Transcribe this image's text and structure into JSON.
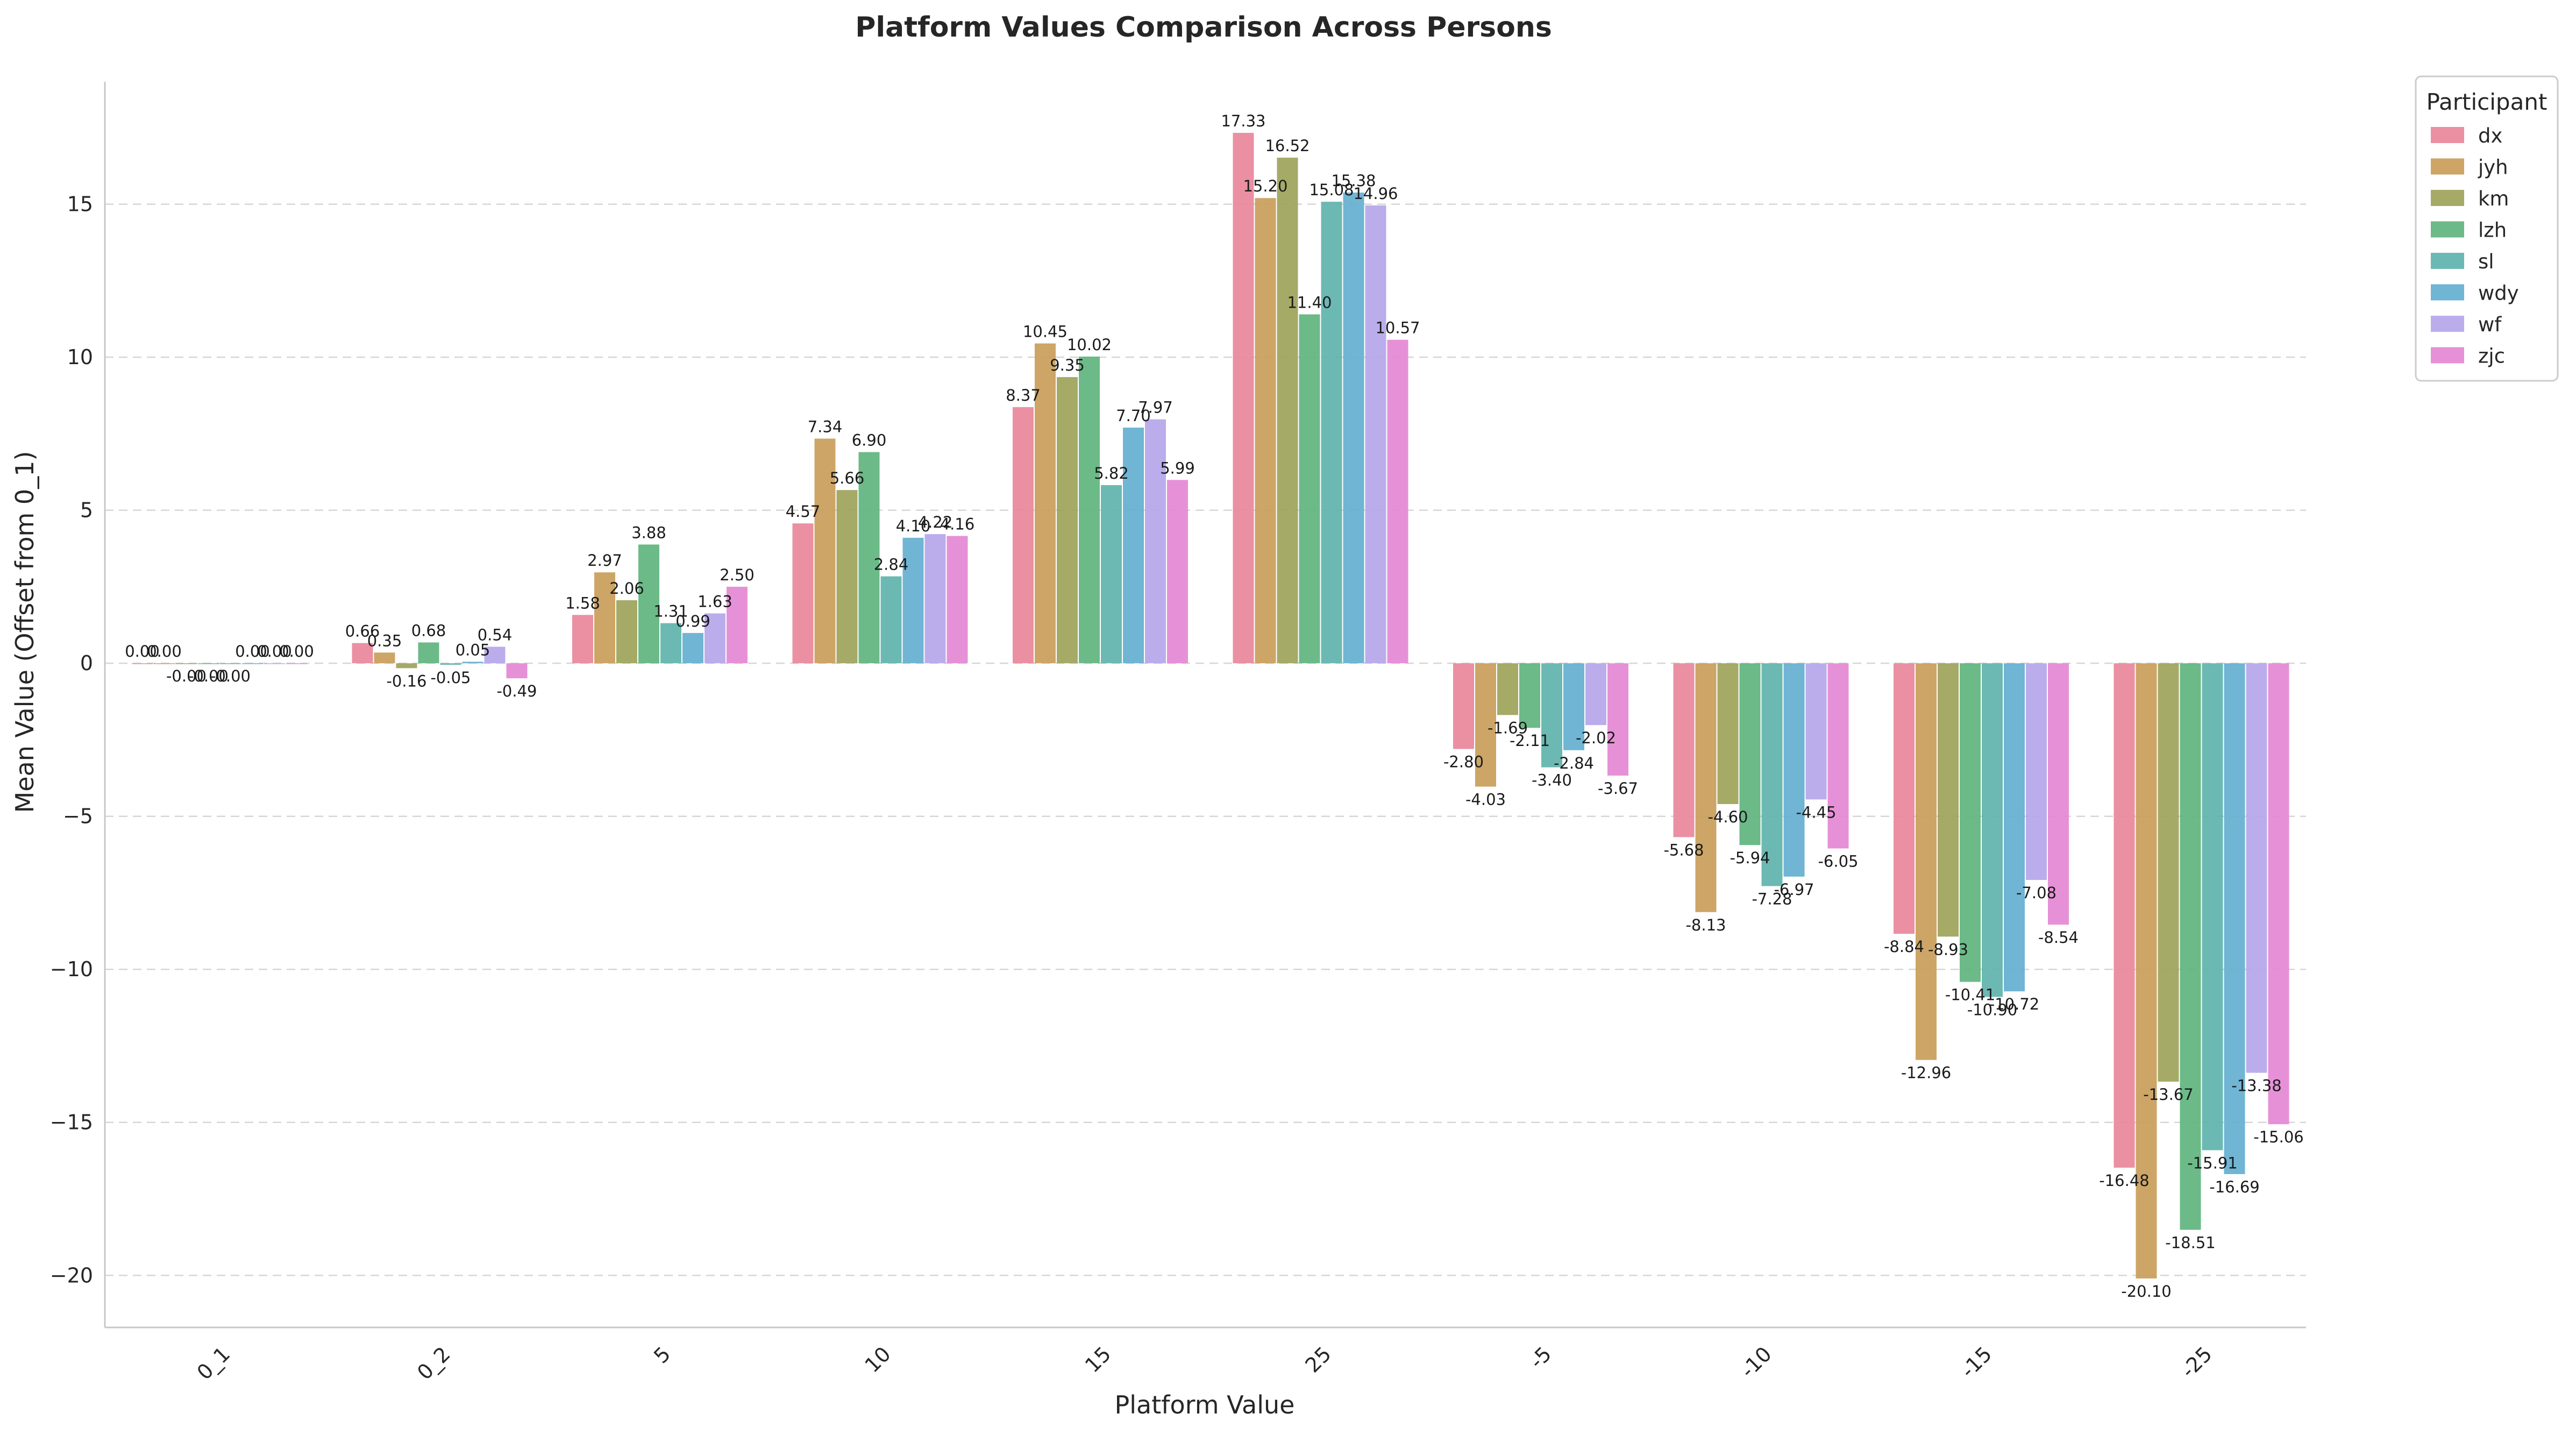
{
  "chart_data": {
    "type": "bar",
    "title": "Platform Values Comparison Across Persons",
    "xlabel": "Platform Value",
    "ylabel": "Mean Value (Offset from 0_1)",
    "ylim": [
      -21.7,
      19.0
    ],
    "yticks": [
      -20,
      -15,
      -10,
      -5,
      0,
      5,
      10,
      15
    ],
    "ytick_labels": [
      "−20",
      "−15",
      "−10",
      "−5",
      "0",
      "5",
      "10",
      "15"
    ],
    "grid": "horizontal dashed",
    "legend_title": "Participant",
    "legend_position": "outside-top-right",
    "categories": [
      "0_1",
      "0_2",
      "5",
      "10",
      "15",
      "25",
      "-5",
      "-10",
      "-15",
      "-25"
    ],
    "series": [
      {
        "name": "dx",
        "color": "#e8879a",
        "values": [
          0.0,
          0.66,
          1.58,
          4.57,
          8.37,
          17.33,
          -2.8,
          -5.68,
          -8.84,
          -16.48
        ],
        "labels": [
          "0.00",
          "0.66",
          "1.58",
          "4.57",
          "8.37",
          "17.33",
          "-2.80",
          "-5.68",
          "-8.84",
          "-16.48"
        ]
      },
      {
        "name": "jyh",
        "color": "#c99d5a",
        "values": [
          0.0,
          0.35,
          2.97,
          7.34,
          10.45,
          15.2,
          -4.03,
          -8.13,
          -12.96,
          -20.1
        ],
        "labels": [
          "0.00",
          "0.35",
          "2.97",
          "7.34",
          "10.45",
          "15.20",
          "-4.03",
          "-8.13",
          "-12.96",
          "-20.10"
        ]
      },
      {
        "name": "km",
        "color": "#9da35a",
        "values": [
          -0.0,
          -0.16,
          2.06,
          5.66,
          9.35,
          16.52,
          -1.69,
          -4.6,
          -8.93,
          -13.67
        ],
        "labels": [
          "-0.00",
          "-0.16",
          "2.06",
          "5.66",
          "9.35",
          "16.52",
          "-1.69",
          "-4.60",
          "-8.93",
          "-13.67"
        ]
      },
      {
        "name": "lzh",
        "color": "#5fb47e",
        "values": [
          -0.0,
          0.68,
          3.88,
          6.9,
          10.02,
          11.4,
          -2.11,
          -5.94,
          -10.41,
          -18.51
        ],
        "labels": [
          "-0.00",
          "0.68",
          "3.88",
          "6.90",
          "10.02",
          "11.40",
          "-2.11",
          "-5.94",
          "-10.41",
          "-18.51"
        ]
      },
      {
        "name": "sl",
        "color": "#5fb3ad",
        "values": [
          -0.0,
          -0.05,
          1.31,
          2.84,
          5.82,
          15.08,
          -3.4,
          -7.28,
          -10.9,
          -15.91
        ],
        "labels": [
          "-0.00",
          "-0.05",
          "1.31",
          "2.84",
          "5.82",
          "15.08",
          "-3.40",
          "-7.28",
          "-10.90",
          "-15.91"
        ]
      },
      {
        "name": "wdy",
        "color": "#64afd0",
        "values": [
          0.0,
          0.05,
          0.99,
          4.1,
          7.7,
          15.38,
          -2.84,
          -6.97,
          -10.72,
          -16.69
        ],
        "labels": [
          "0.00",
          "0.05",
          "0.99",
          "4.10",
          "7.70",
          "15.38",
          "-2.84",
          "-6.97",
          "-10.72",
          "-16.69"
        ]
      },
      {
        "name": "wf",
        "color": "#b5a6ea",
        "values": [
          0.0,
          0.54,
          1.63,
          4.22,
          7.97,
          14.96,
          -2.02,
          -4.45,
          -7.08,
          -13.38
        ],
        "labels": [
          "0.00",
          "0.54",
          "1.63",
          "4.22",
          "7.97",
          "14.96",
          "-2.02",
          "-4.45",
          "-7.08",
          "-13.38"
        ]
      },
      {
        "name": "zjc",
        "color": "#e488d4",
        "values": [
          0.0,
          -0.49,
          2.5,
          4.16,
          5.99,
          10.57,
          -3.67,
          -6.05,
          -8.54,
          -15.06
        ],
        "labels": [
          "0.00",
          "-0.49",
          "2.50",
          "4.16",
          "5.99",
          "10.57",
          "-3.67",
          "-6.05",
          "-8.54",
          "-15.06"
        ]
      }
    ]
  }
}
